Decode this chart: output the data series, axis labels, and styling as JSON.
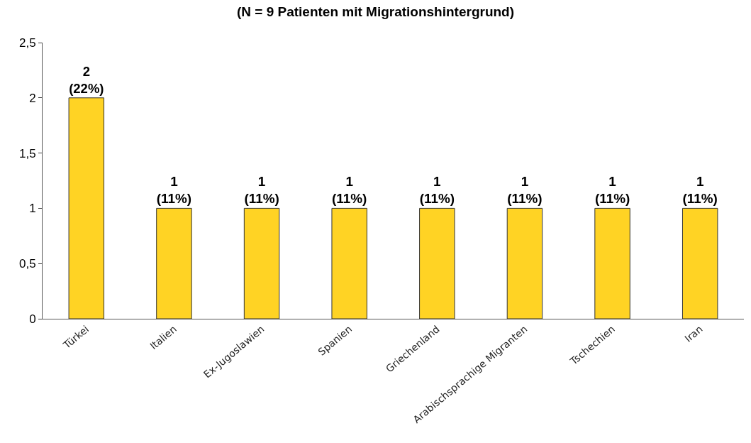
{
  "chart_data": {
    "type": "bar",
    "title": "(N = 9 Patienten mit Migrationshintergrund)",
    "categories": [
      "Türkei",
      "Italien",
      "Ex-Jugoslawien",
      "Spanien",
      "Griechenland",
      "Arabischsprachige Migranten",
      "Tschechien",
      "Iran"
    ],
    "values": [
      2,
      1,
      1,
      1,
      1,
      1,
      1,
      1
    ],
    "value_labels": [
      "2\n(22%)",
      "1\n(11%)",
      "1\n(11%)",
      "1\n(11%)",
      "1\n(11%)",
      "1\n(11%)",
      "1\n(11%)",
      "1\n(11%)"
    ],
    "color": "#ffd324",
    "ylim": [
      0,
      2.5
    ],
    "yticks": [
      0,
      {
        "value": 0.5,
        "label": "0,5"
      },
      1,
      {
        "value": 1.5,
        "label": "1,5"
      },
      2,
      {
        "value": 2.5,
        "label": "2,5"
      }
    ],
    "tick_labels": true
  }
}
